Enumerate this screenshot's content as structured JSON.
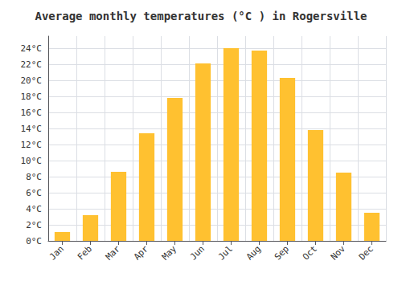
{
  "chart_data": {
    "type": "bar",
    "title": "Average monthly temperatures (°C ) in Rogersville",
    "categories": [
      "Jan",
      "Feb",
      "Mar",
      "Apr",
      "May",
      "Jun",
      "Jul",
      "Aug",
      "Sep",
      "Oct",
      "Nov",
      "Dec"
    ],
    "values": [
      1.1,
      3.2,
      8.6,
      13.4,
      17.8,
      22.1,
      24.0,
      23.7,
      20.3,
      13.8,
      8.5,
      3.5
    ],
    "color": "#FFC130",
    "ylim": [
      0,
      25.5
    ],
    "yticks": [
      {
        "value": 0,
        "label": "0°C"
      },
      {
        "value": 2,
        "label": "2°C"
      },
      {
        "value": 4,
        "label": "4°C"
      },
      {
        "value": 6,
        "label": "6°C"
      },
      {
        "value": 8,
        "label": "8°C"
      },
      {
        "value": 10,
        "label": "10°C"
      },
      {
        "value": 12,
        "label": "12°C"
      },
      {
        "value": 14,
        "label": "14°C"
      },
      {
        "value": 16,
        "label": "16°C"
      },
      {
        "value": 18,
        "label": "18°C"
      },
      {
        "value": 20,
        "label": "20°C"
      },
      {
        "value": 22,
        "label": "22°C"
      },
      {
        "value": 24,
        "label": "24°C"
      }
    ],
    "grid": true
  }
}
